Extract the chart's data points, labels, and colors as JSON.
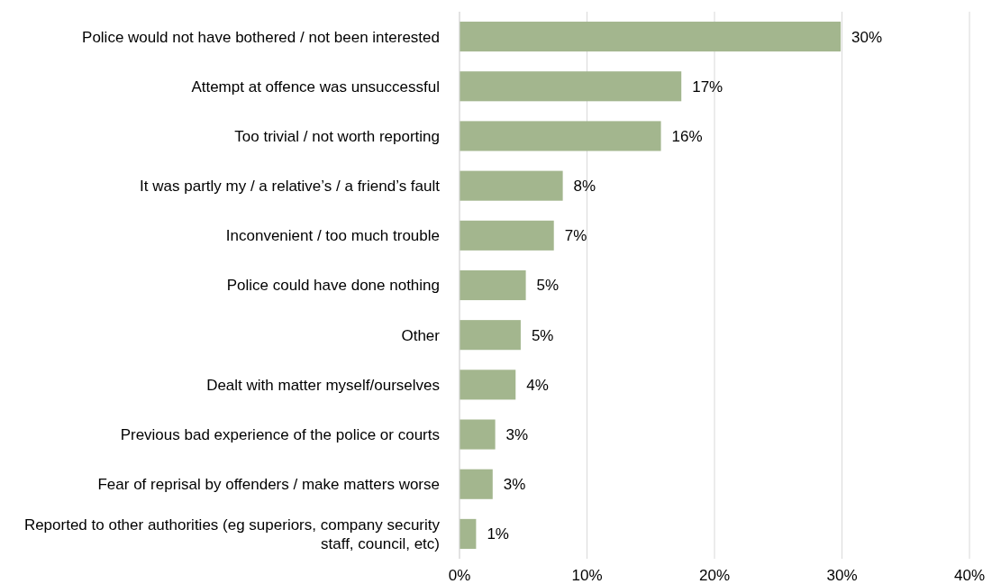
{
  "chart_data": {
    "type": "bar",
    "orientation": "horizontal",
    "categories": [
      "Police would not have bothered / not been interested",
      "Attempt at offence was unsuccessful",
      "Too trivial / not worth reporting",
      "It was partly my / a relative’s / a friend’s fault",
      "Inconvenient / too much trouble",
      "Police could have done nothing",
      "Other",
      "Dealt with matter myself/ourselves",
      "Previous bad experience of the police or courts",
      "Fear of reprisal by offenders / make matters worse",
      "Reported to other authorities (eg superiors, company security staff, council, etc)"
    ],
    "values": [
      29.9,
      17.4,
      15.8,
      8.1,
      7.4,
      5.2,
      4.8,
      4.4,
      2.8,
      2.6,
      1.3
    ],
    "value_labels": [
      "30%",
      "17%",
      "16%",
      "8%",
      "7%",
      "5%",
      "5%",
      "4%",
      "3%",
      "3%",
      "1%"
    ],
    "color": "#a3b68e",
    "xlim": [
      0,
      40
    ],
    "xticks": [
      {
        "value": 0,
        "label": "0%"
      },
      {
        "value": 10,
        "label": "10%"
      },
      {
        "value": 20,
        "label": "20%"
      },
      {
        "value": 30,
        "label": "30%"
      },
      {
        "value": 40,
        "label": "40%"
      }
    ],
    "grid": "x"
  }
}
